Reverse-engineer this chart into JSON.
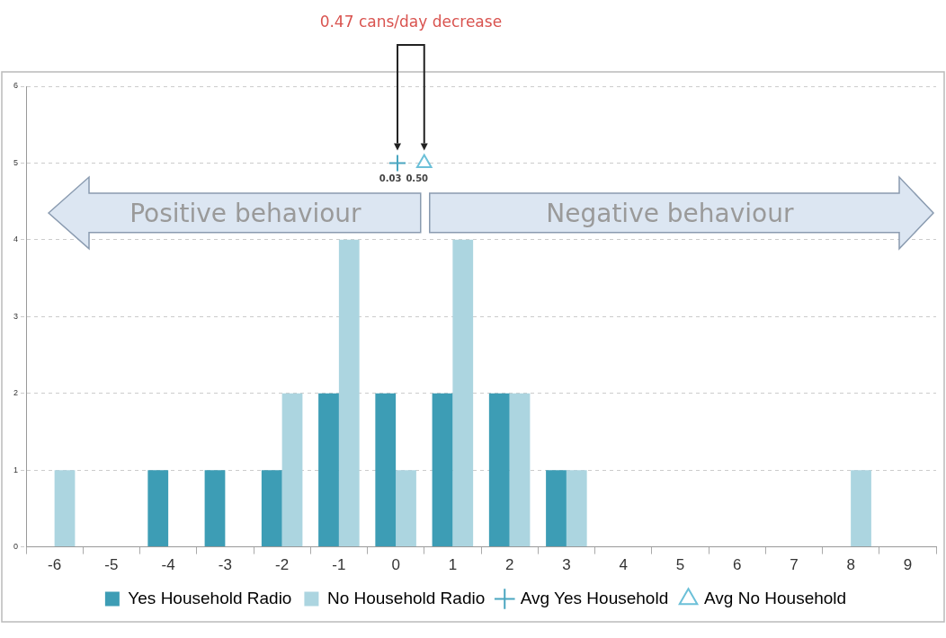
{
  "chart_data": {
    "type": "bar",
    "x": [
      -6,
      -5,
      -4,
      -3,
      -2,
      -1,
      0,
      1,
      2,
      3,
      4,
      5,
      6,
      7,
      8,
      9
    ],
    "xlim": [
      -6.5,
      9.5
    ],
    "xticks": [
      -6,
      -5,
      -4,
      -3,
      -2,
      -1,
      0,
      1,
      2,
      3,
      4,
      5,
      6,
      7,
      8,
      9
    ],
    "ylim": [
      0,
      6
    ],
    "yticks": [
      0,
      1,
      2,
      3,
      4,
      5,
      6
    ],
    "grid": "y",
    "legend": "bottom",
    "series": [
      {
        "name": "Yes Household Radio",
        "color": "#3d9db5",
        "values": [
          0,
          0,
          1,
          1,
          1,
          2,
          2,
          2,
          2,
          1,
          0,
          0,
          0,
          0,
          0,
          0
        ]
      },
      {
        "name": "No Household Radio",
        "color": "#acd5e0",
        "values": [
          1,
          0,
          0,
          0,
          2,
          4,
          1,
          4,
          2,
          1,
          0,
          0,
          0,
          0,
          1,
          0
        ]
      },
      {
        "name": "Avg Yes Household",
        "type": "scatter",
        "marker": "cross",
        "color": "#4aa6c0",
        "x": [
          0.03
        ],
        "values": [
          5
        ]
      },
      {
        "name": "Avg No Household",
        "type": "scatter",
        "marker": "triangle",
        "color": "#6cc0d8",
        "x": [
          0.5
        ],
        "values": [
          5
        ]
      }
    ],
    "annotations": [
      "0.47 cans/day decrease",
      "Positive behaviour",
      "Negative behaviour",
      {
        "text": "0.03",
        "x": 0.03,
        "y": 5
      },
      {
        "text": "0.50",
        "x": 0.5,
        "y": 5
      }
    ]
  }
}
